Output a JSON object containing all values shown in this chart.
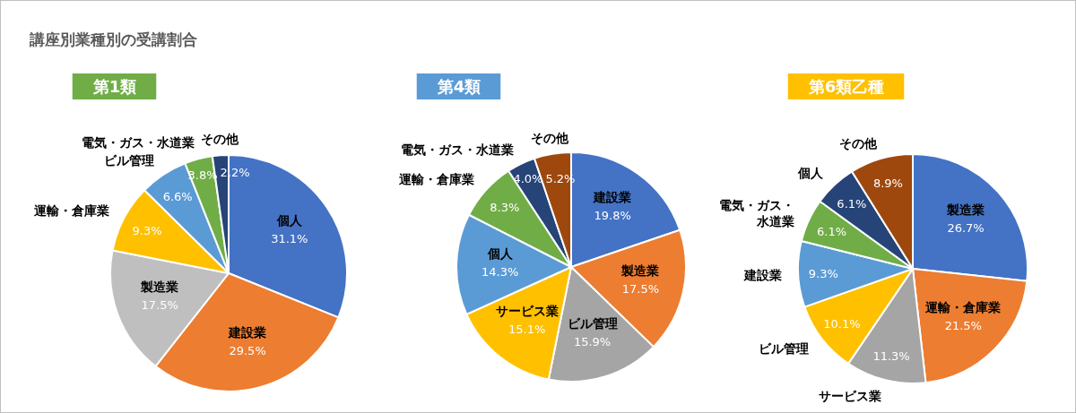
{
  "chart_data": [
    {
      "type": "pie",
      "title": "第1類",
      "annotations": [
        "講座別業種別の受講割合"
      ],
      "value_labels": [
        "31.1%",
        "29.5%",
        "17.5%",
        "9.3%",
        "6.6%",
        "3.8%",
        "2.2%"
      ],
      "categories": [
        "個人",
        "建設業",
        "製造業",
        "運輸・倉庫業",
        "ビル管理",
        "電気・ガス・水道業",
        "その他"
      ],
      "values": [
        31.1,
        29.5,
        17.5,
        9.3,
        6.6,
        3.8,
        2.2
      ],
      "colors": [
        "#4472c4",
        "#ed7d31",
        "#bfbfbf",
        "#ffc000",
        "#5b9bd5",
        "#70ad47",
        "#264478"
      ]
    },
    {
      "type": "pie",
      "title": "第4類",
      "value_labels": [
        "19.8%",
        "17.5%",
        "15.9%",
        "15.1%",
        "14.3%",
        "8.3%",
        "4.0%",
        "5.2%"
      ],
      "categories": [
        "建設業",
        "製造業",
        "ビル管理",
        "サービス業",
        "個人",
        "運輸・倉庫業",
        "電気・ガス・水道業",
        "その他"
      ],
      "values": [
        19.8,
        17.5,
        15.9,
        15.1,
        14.3,
        8.3,
        4.0,
        5.2
      ],
      "colors": [
        "#4472c4",
        "#ed7d31",
        "#a5a5a5",
        "#ffc000",
        "#5b9bd5",
        "#70ad47",
        "#264478",
        "#9e480e"
      ]
    },
    {
      "type": "pie",
      "title": "第6類乙種",
      "value_labels": [
        "26.7%",
        "21.5%",
        "11.3%",
        "10.1%",
        "9.3%",
        "6.1%",
        "6.1%",
        "8.9%"
      ],
      "categories": [
        "製造業",
        "運輸・倉庫業",
        "サービス業",
        "ビル管理",
        "建設業",
        "電気・ガス・水道業",
        "個人",
        "その他"
      ],
      "values": [
        26.7,
        21.5,
        11.3,
        10.1,
        9.3,
        6.1,
        6.1,
        8.9
      ],
      "colors": [
        "#4472c4",
        "#ed7d31",
        "#a5a5a5",
        "#ffc000",
        "#5b9bd5",
        "#70ad47",
        "#264478",
        "#9e480e"
      ]
    }
  ]
}
